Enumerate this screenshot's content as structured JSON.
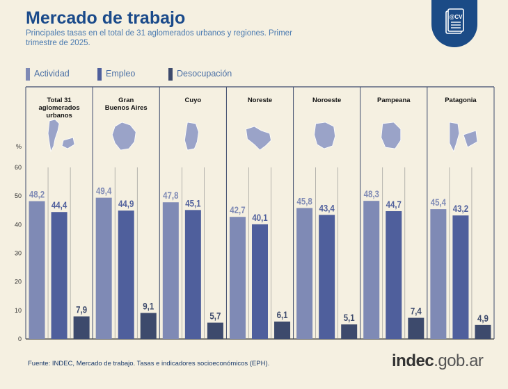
{
  "header": {
    "title": "Mercado de trabajo",
    "subtitle": "Principales tasas en el total de 31 aglomerados urbanos y regiones. Primer trimestre de 2025."
  },
  "footer": {
    "source": "Fuente: INDEC, Mercado de trabajo. Tasas e indicadores socioeconómicos (EPH).",
    "logo_main": "indec",
    "logo_domain": ".gob.ar"
  },
  "colors": {
    "background": "#f5f0e1",
    "actividad": "#7f8ab5",
    "empleo": "#4f5f9c",
    "desocupacion": "#3d4a6c",
    "title": "#1a4a8a"
  },
  "chart_data": {
    "type": "bar",
    "categories": [
      "Total 31 aglomerados urbanos",
      "Gran Buenos Aires",
      "Cuyo",
      "Noreste",
      "Noroeste",
      "Pampeana",
      "Patagonia"
    ],
    "series": [
      {
        "name": "Actividad",
        "values": [
          48.2,
          49.4,
          47.8,
          42.7,
          45.8,
          48.3,
          45.4
        ]
      },
      {
        "name": "Empleo",
        "values": [
          44.4,
          44.9,
          45.1,
          40.1,
          43.4,
          44.7,
          43.2
        ]
      },
      {
        "name": "Desocupación",
        "values": [
          7.9,
          9.1,
          5.7,
          6.1,
          5.1,
          7.4,
          4.9
        ]
      }
    ],
    "ylabel": "%",
    "ylim": [
      0,
      60
    ],
    "yticks": [
      0,
      10,
      20,
      30,
      40,
      50,
      60
    ],
    "grid": false,
    "legend_position": "top-left",
    "category_labels": [
      [
        "Total 31",
        "aglomerados",
        "urbanos"
      ],
      [
        "Gran",
        "Buenos Aires"
      ],
      [
        "Cuyo"
      ],
      [
        "Noreste"
      ],
      [
        "Noroeste"
      ],
      [
        "Pampeana"
      ],
      [
        "Patagonia"
      ]
    ],
    "value_labels": [
      [
        "48,2",
        "49,4",
        "47,8",
        "42,7",
        "45,8",
        "48,3",
        "45,4"
      ],
      [
        "44,4",
        "44,9",
        "45,1",
        "40,1",
        "43,4",
        "44,7",
        "43,2"
      ],
      [
        "7,9",
        "9,1",
        "5,7",
        "6,1",
        "5,1",
        "7,4",
        "4,9"
      ]
    ]
  }
}
